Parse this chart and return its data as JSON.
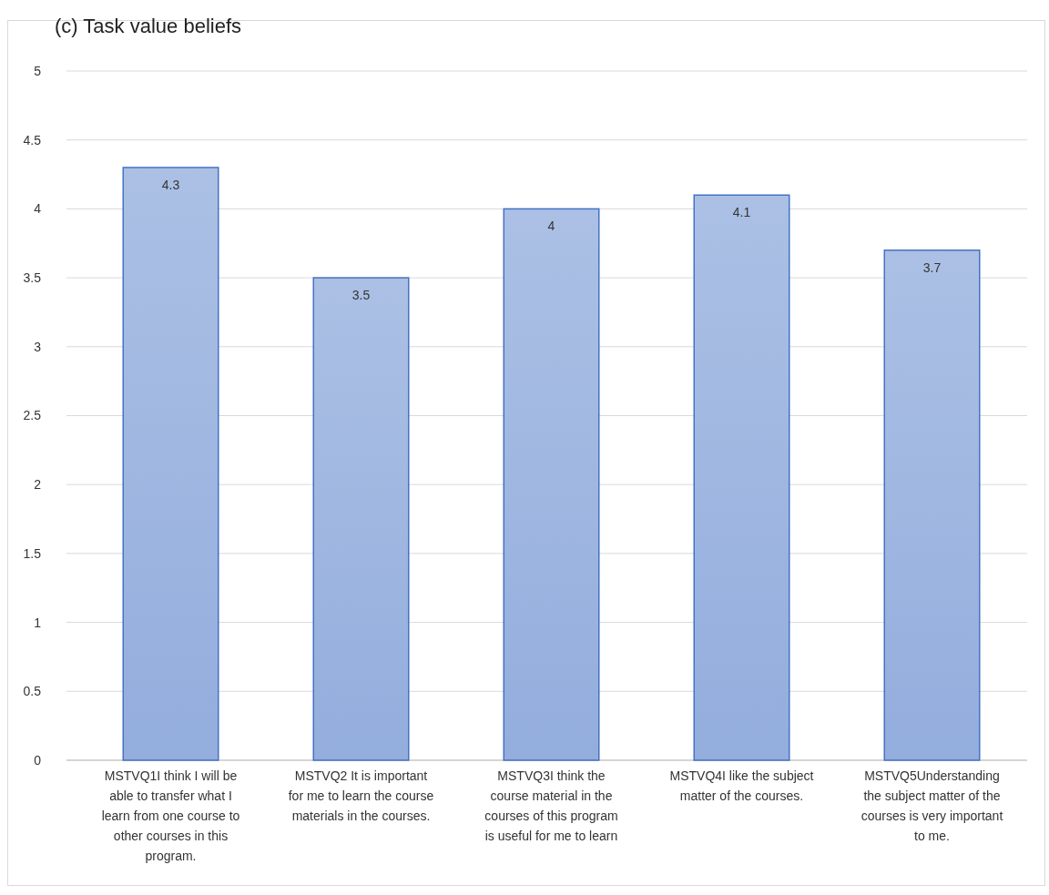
{
  "chart_data": {
    "type": "bar",
    "title": "(c)  Task value beliefs",
    "categories": [
      "MSTVQ1I think I will be able to transfer what I learn from one course to other courses in this program.",
      "MSTVQ2 It is important for me to learn the course materials in the courses.",
      "MSTVQ3I think the course material in the courses of this program is useful for me to learn",
      "MSTVQ4I like the subject matter of the courses.",
      "MSTVQ5Understanding the subject matter of the courses is very important to me."
    ],
    "values": [
      4.3,
      3.5,
      4,
      4.1,
      3.7
    ],
    "color": "#4472c4",
    "ylim": [
      0,
      5
    ],
    "yticks": [
      0,
      0.5,
      1,
      1.5,
      2,
      2.5,
      3,
      3.5,
      4,
      4.5,
      5
    ],
    "grid": "y",
    "data_labels": true
  }
}
